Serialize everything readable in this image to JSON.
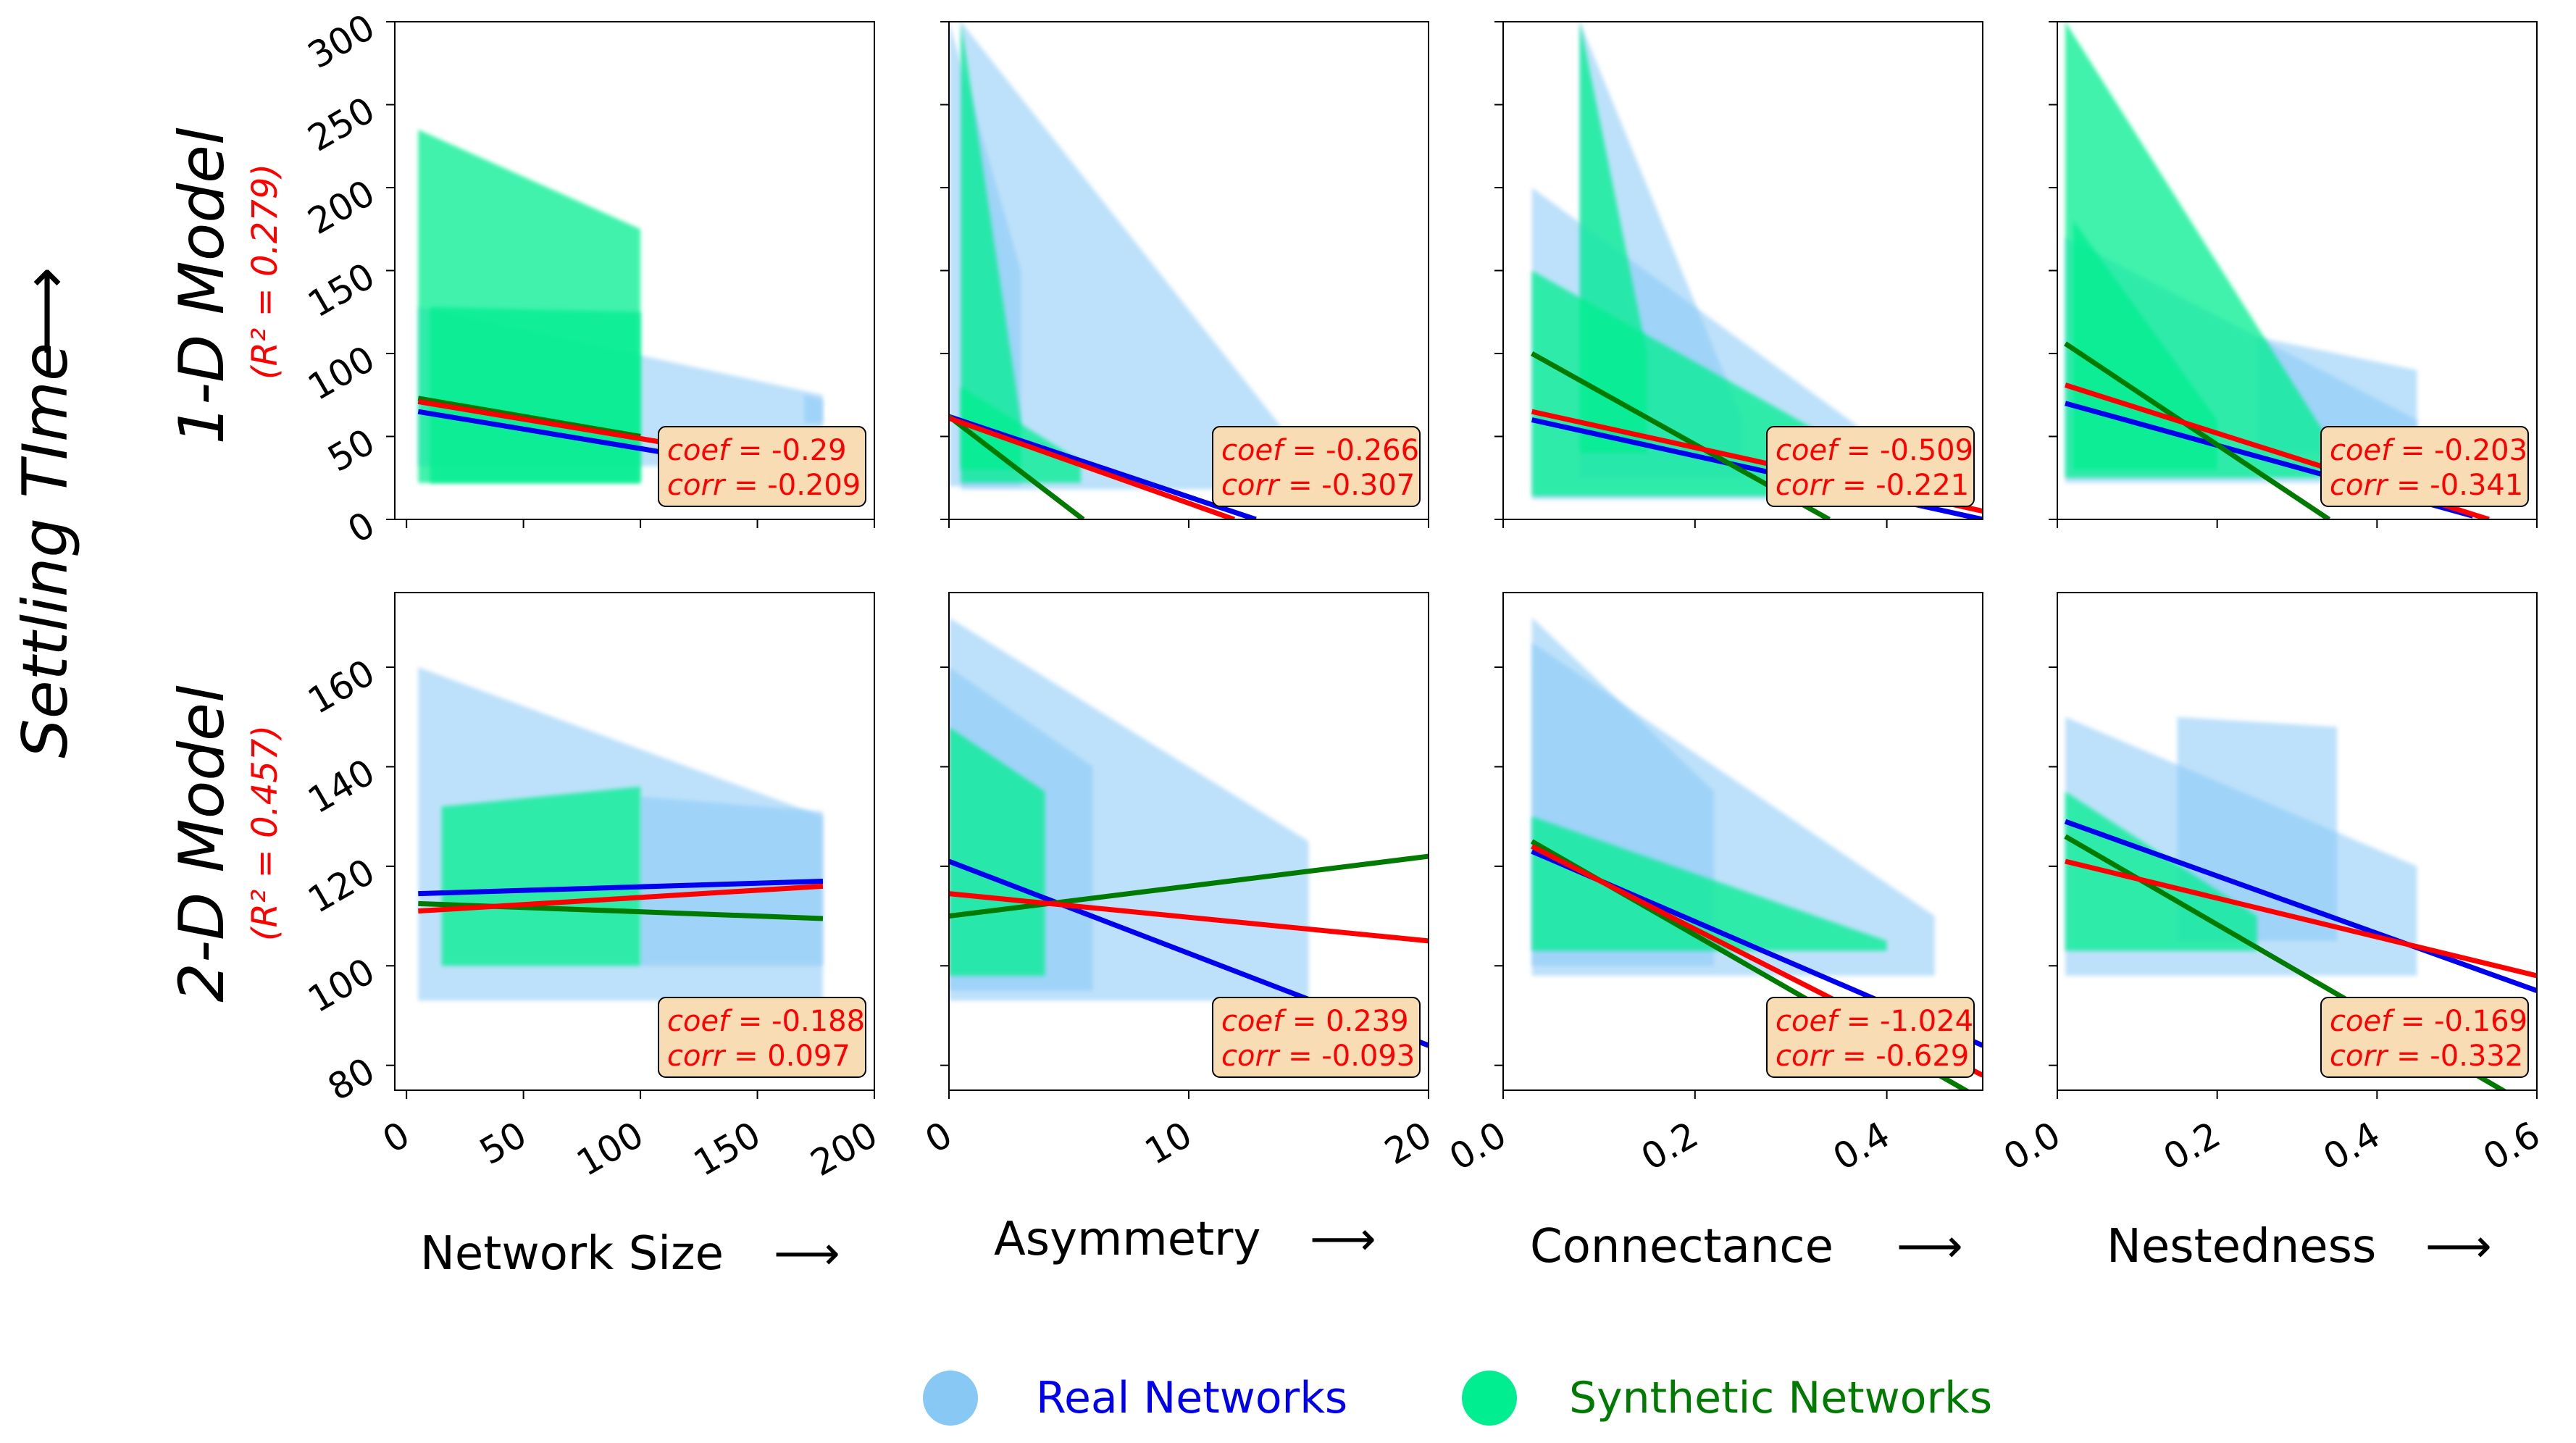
{
  "figure": {
    "ylabel": "Settling TIme",
    "arrow": "⟶",
    "colors": {
      "real_fill": "#87c8f5",
      "synthetic_fill": "#00ee90",
      "real_line": "#0000ee",
      "synthetic_line": "#007a00",
      "combined_line": "#ff0000",
      "box_fill": "#f7dcb4",
      "stats_text": "#ff0000"
    },
    "legend": [
      {
        "label": "Real Networks",
        "marker_color": "#87c8f5",
        "text_color": "#0000ee"
      },
      {
        "label": "Synthetic Networks",
        "marker_color": "#00ee90",
        "text_color": "#007a00"
      }
    ]
  },
  "chart_data": [
    {
      "type": "scatter",
      "row_label": "1-D Model",
      "r2_label": "(R² = 0.279)",
      "xlabel": "Network Size",
      "x_ticks": [
        "0",
        "50",
        "100",
        "150",
        "200"
      ],
      "y_ticks": [
        "0",
        "50",
        "100",
        "150",
        "200",
        "250",
        "300"
      ],
      "xlim": [
        -5,
        200
      ],
      "ylim": [
        0,
        300
      ],
      "stats": {
        "coef": "-0.29",
        "corr": "-0.209"
      },
      "series": [
        {
          "name": "Real Networks",
          "line": [
            [
              5,
              65
            ],
            [
              120,
              38
            ]
          ]
        },
        {
          "name": "Synthetic Networks",
          "line": [
            [
              5,
              73
            ],
            [
              100,
              50
            ]
          ]
        },
        {
          "line": [
            [
              5,
              71
            ],
            [
              120,
              44
            ]
          ]
        }
      ]
    },
    {
      "type": "scatter",
      "row_label": "1-D Model",
      "xlabel": "Asymmetry",
      "x_ticks": [
        "0",
        "10",
        "20"
      ],
      "xlim": [
        0,
        20
      ],
      "ylim": [
        0,
        300
      ],
      "stats": {
        "coef": "-0.266",
        "corr": "-0.307"
      },
      "series": [
        {
          "name": "Real Networks",
          "line": [
            [
              0,
              62
            ],
            [
              12.8,
              0
            ]
          ]
        },
        {
          "name": "Synthetic Networks",
          "line": [
            [
              0,
              62
            ],
            [
              5.6,
              0
            ]
          ]
        },
        {
          "line": [
            [
              0,
              61
            ],
            [
              11.9,
              0
            ]
          ]
        }
      ]
    },
    {
      "type": "scatter",
      "row_label": "1-D Model",
      "xlabel": "Connectance",
      "x_ticks": [
        "0.0",
        "0.2",
        "0.4"
      ],
      "xlim": [
        0,
        0.5
      ],
      "ylim": [
        0,
        300
      ],
      "stats": {
        "coef": "-0.509",
        "corr": "-0.221"
      },
      "series": [
        {
          "name": "Real Networks",
          "line": [
            [
              0.03,
              60
            ],
            [
              0.5,
              0
            ]
          ]
        },
        {
          "name": "Synthetic Networks",
          "line": [
            [
              0.03,
              100
            ],
            [
              0.34,
              0
            ]
          ]
        },
        {
          "line": [
            [
              0.03,
              65
            ],
            [
              0.5,
              5
            ]
          ]
        }
      ]
    },
    {
      "type": "scatter",
      "row_label": "1-D Model",
      "xlabel": "Nestedness",
      "x_ticks": [
        "0.0",
        "0.2",
        "0.4",
        "0.6"
      ],
      "xlim": [
        0,
        0.6
      ],
      "ylim": [
        0,
        300
      ],
      "stats": {
        "coef": "-0.203",
        "corr": "-0.341"
      },
      "series": [
        {
          "name": "Real Networks",
          "line": [
            [
              0.01,
              70
            ],
            [
              0.52,
              2
            ]
          ]
        },
        {
          "name": "Synthetic Networks",
          "line": [
            [
              0.01,
              106
            ],
            [
              0.34,
              0
            ]
          ]
        },
        {
          "line": [
            [
              0.01,
              81
            ],
            [
              0.54,
              0
            ]
          ]
        }
      ]
    },
    {
      "type": "scatter",
      "row_label": "2-D Model",
      "r2_label": "(R² = 0.457)",
      "xlabel": "Network Size",
      "x_ticks": [
        "0",
        "50",
        "100",
        "150",
        "200"
      ],
      "y_ticks": [
        "80",
        "100",
        "120",
        "140",
        "160"
      ],
      "xlim": [
        -5,
        200
      ],
      "ylim": [
        75,
        175
      ],
      "stats": {
        "coef": "-0.188",
        "corr": "0.097"
      },
      "series": [
        {
          "name": "Real Networks",
          "line": [
            [
              5,
              114.5
            ],
            [
              178,
              117
            ]
          ]
        },
        {
          "name": "Synthetic Networks",
          "line": [
            [
              5,
              112.5
            ],
            [
              178,
              109.5
            ]
          ]
        },
        {
          "line": [
            [
              5,
              111
            ],
            [
              178,
              116
            ]
          ]
        }
      ]
    },
    {
      "type": "scatter",
      "row_label": "2-D Model",
      "xlabel": "Asymmetry",
      "x_ticks": [
        "0",
        "10",
        "20"
      ],
      "xlim": [
        0,
        20
      ],
      "ylim": [
        75,
        175
      ],
      "stats": {
        "coef": "0.239",
        "corr": "-0.093"
      },
      "series": [
        {
          "name": "Real Networks",
          "line": [
            [
              0,
              121
            ],
            [
              20,
              84
            ]
          ]
        },
        {
          "name": "Synthetic Networks",
          "line": [
            [
              0,
              110
            ],
            [
              20,
              122
            ]
          ]
        },
        {
          "line": [
            [
              0,
              114.5
            ],
            [
              20,
              105
            ]
          ]
        }
      ]
    },
    {
      "type": "scatter",
      "row_label": "2-D Model",
      "xlabel": "Connectance",
      "x_ticks": [
        "0.0",
        "0.2",
        "0.4"
      ],
      "xlim": [
        0,
        0.5
      ],
      "ylim": [
        75,
        175
      ],
      "stats": {
        "coef": "-1.024",
        "corr": "-0.629"
      },
      "series": [
        {
          "name": "Real Networks",
          "line": [
            [
              0.03,
              123
            ],
            [
              0.5,
              84
            ]
          ]
        },
        {
          "name": "Synthetic Networks",
          "line": [
            [
              0.03,
              125
            ],
            [
              0.5,
              73
            ]
          ]
        },
        {
          "line": [
            [
              0.03,
              124
            ],
            [
              0.5,
              78
            ]
          ]
        }
      ]
    },
    {
      "type": "scatter",
      "row_label": "2-D Model",
      "xlabel": "Nestedness",
      "x_ticks": [
        "0.0",
        "0.2",
        "0.4",
        "0.6"
      ],
      "xlim": [
        0,
        0.6
      ],
      "ylim": [
        75,
        175
      ],
      "stats": {
        "coef": "-0.169",
        "corr": "-0.332"
      },
      "series": [
        {
          "name": "Real Networks",
          "line": [
            [
              0.01,
              129
            ],
            [
              0.6,
              95
            ]
          ]
        },
        {
          "name": "Synthetic Networks",
          "line": [
            [
              0.01,
              126
            ],
            [
              0.6,
              71
            ]
          ]
        },
        {
          "line": [
            [
              0.01,
              121
            ],
            [
              0.6,
              98
            ]
          ]
        }
      ]
    }
  ]
}
